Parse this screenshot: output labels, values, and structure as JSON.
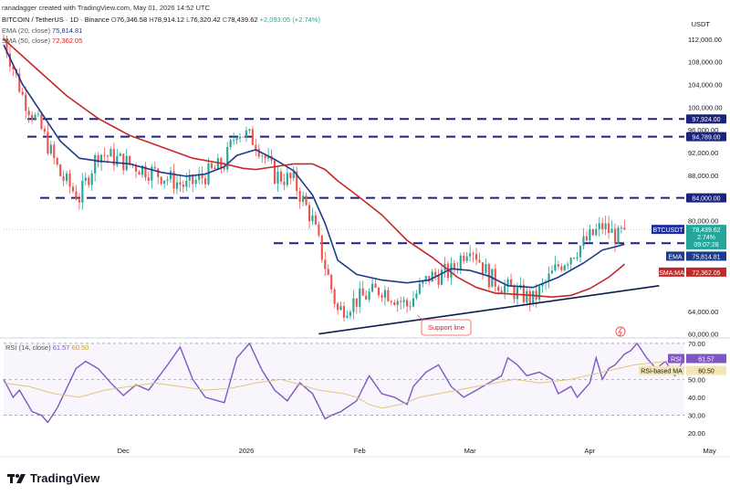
{
  "header": {
    "credit": "ranadagger created with TradingView.com, May 01, 2026 14:52 UTC",
    "symbol": "BITCOIN / TetherUS · 1D · Binance",
    "open_label": "O",
    "open": "76,346.58",
    "high_label": "H",
    "high": "78,914.12",
    "low_label": "L",
    "low": "76,320.42",
    "close_label": "C",
    "close": "78,439.62",
    "change": "+2,093.05 (+2.74%)",
    "ema_label": "EMA (20, close)",
    "ema_value": "75,814.81",
    "sma_label": "SMA (50, close)",
    "sma_value": "72,362.05",
    "rsi_label": "RSI (14, close)",
    "rsi_value": "61.57",
    "rsi_ma_value": "60.50"
  },
  "currency": "USDT",
  "branding": {
    "name": "TradingView"
  },
  "colors": {
    "up": "#26a69a",
    "down": "#ef5350",
    "ema": "#1e3a8a",
    "sma": "#c62828",
    "rsi": "#7e57c2",
    "rsi_ma": "#e0c67a",
    "level": "#1a237e",
    "current": "#1e2e9e"
  },
  "chart_data": [
    {
      "type": "candlestick",
      "title": "BITCOIN / TetherUS · 1D · Binance",
      "x_tick_labels": [
        "Dec",
        "2026",
        "Feb",
        "Mar",
        "Apr",
        "May"
      ],
      "y_tick_labels": [
        "112,000.00",
        "108,000.00",
        "104,000.00",
        "100,000.00",
        "96,000.00",
        "92,000.00",
        "88,000.00",
        "80,000.00",
        "64,000.00",
        "60,000.00"
      ],
      "ylim": [
        58000,
        116000
      ],
      "path_points": [
        [
          0,
          112000
        ],
        [
          6,
          102000
        ],
        [
          12,
          96000
        ],
        [
          18,
          88000
        ],
        [
          24,
          84000
        ],
        [
          30,
          92000
        ],
        [
          40,
          90000
        ],
        [
          50,
          88000
        ],
        [
          58,
          86000
        ],
        [
          64,
          88000
        ],
        [
          70,
          90000
        ],
        [
          74,
          96000
        ],
        [
          80,
          94000
        ],
        [
          86,
          88000
        ],
        [
          92,
          87000
        ],
        [
          98,
          80000
        ],
        [
          102,
          72000
        ],
        [
          106,
          64000
        ],
        [
          112,
          66000
        ],
        [
          120,
          68000
        ],
        [
          128,
          65000
        ],
        [
          135,
          70000
        ],
        [
          142,
          71000
        ],
        [
          148,
          76000
        ],
        [
          154,
          70000
        ],
        [
          160,
          68000
        ],
        [
          168,
          66000
        ],
        [
          176,
          72000
        ],
        [
          184,
          76000
        ],
        [
          190,
          79000
        ],
        [
          195,
          77000
        ],
        [
          197,
          78439.62
        ]
      ],
      "series": [
        {
          "name": "EMA (20, close)",
          "last": 75814.81,
          "values": [
            111000,
            104000,
            99000,
            94000,
            91000,
            90500,
            90000,
            88500,
            87800,
            88200,
            89500,
            91500,
            92500,
            90800,
            88800,
            84500,
            79500,
            73000,
            70500,
            69500,
            69000,
            69500,
            71500,
            71200,
            70200,
            68500,
            68200,
            70000,
            72500,
            74800,
            75500,
            75814.81
          ],
          "x": [
            0,
            6,
            12,
            18,
            24,
            30,
            40,
            50,
            58,
            64,
            70,
            74,
            80,
            86,
            92,
            98,
            102,
            106,
            112,
            120,
            128,
            135,
            142,
            148,
            154,
            160,
            168,
            176,
            184,
            190,
            195,
            197
          ]
        },
        {
          "name": "SMA (50, close)",
          "last": 72362.05,
          "values": [
            112000,
            107000,
            102000,
            98000,
            95000,
            93000,
            91000,
            90000,
            89200,
            89000,
            89500,
            90000,
            90000,
            89000,
            87000,
            84500,
            81000,
            76500,
            73500,
            70000,
            68200,
            67200,
            67000,
            66800,
            66500,
            66800,
            68000,
            70000,
            71800,
            72362.05
          ],
          "x": [
            0,
            10,
            20,
            30,
            40,
            50,
            60,
            70,
            76,
            80,
            86,
            92,
            98,
            102,
            106,
            112,
            120,
            128,
            136,
            144,
            150,
            156,
            162,
            168,
            174,
            180,
            186,
            192,
            196,
            197
          ]
        }
      ],
      "levels": [
        {
          "label": "97,924.00",
          "value": 97924
        },
        {
          "label": "94,789.00",
          "value": 94789
        },
        {
          "label": "84,000.00",
          "value": 84000
        },
        {
          "label": "76,000.00",
          "value": 76000
        }
      ],
      "current_price": {
        "label": "BTCUSDT",
        "value": "78,439.62",
        "pct": "2.74%",
        "time": "09:07:28"
      },
      "ema_tag": {
        "label": "EMA",
        "value": "75,814.81"
      },
      "sma_tag": {
        "label": "SMA:MA",
        "value": "72,362.05"
      },
      "support_line": {
        "label": "Support line",
        "from": [
          100,
          60000
        ],
        "to": [
          208,
          68500
        ]
      }
    },
    {
      "type": "line",
      "title": "RSI (14, close)",
      "y_tick_labels": [
        "70.00",
        "50.00",
        "40.00",
        "30.00",
        "20.00"
      ],
      "ylim": [
        13,
        72
      ],
      "bands": [
        30,
        70
      ],
      "series": [
        {
          "name": "RSI",
          "last": 61.57,
          "values": [
            50,
            40,
            44,
            32,
            30,
            26,
            34,
            45,
            56,
            60,
            56,
            48,
            41,
            47,
            44,
            58,
            68,
            50,
            40,
            37,
            62,
            70,
            55,
            44,
            38,
            48,
            42,
            35,
            28,
            30,
            32,
            38,
            52,
            42,
            40,
            36,
            46,
            54,
            58,
            46,
            40,
            44,
            48,
            52,
            62,
            58,
            52,
            54,
            50,
            42,
            46,
            40,
            48,
            62,
            50,
            56,
            58,
            64,
            66,
            70,
            62,
            56,
            60,
            52,
            61.57
          ],
          "x": [
            0,
            3,
            5,
            9,
            12,
            14,
            17,
            20,
            23,
            26,
            30,
            34,
            38,
            42,
            46,
            52,
            56,
            60,
            64,
            70,
            74,
            78,
            82,
            86,
            90,
            94,
            98,
            100,
            102,
            104,
            107,
            112,
            116,
            120,
            124,
            128,
            130,
            134,
            138,
            142,
            146,
            150,
            154,
            158,
            160,
            163,
            166,
            170,
            174,
            176,
            180,
            182,
            186,
            188,
            190,
            192,
            194,
            197,
            199,
            201,
            204,
            207,
            210,
            213,
            216
          ]
        },
        {
          "name": "RSI-based MA",
          "last": 60.5,
          "values": [
            48,
            46,
            42,
            40,
            44,
            46,
            48,
            46,
            44,
            45,
            48,
            50,
            46,
            44,
            43,
            42,
            40,
            36,
            34,
            36,
            40,
            42,
            44,
            46,
            48,
            50,
            48,
            50,
            54,
            58,
            60,
            60.5
          ],
          "x": [
            0,
            8,
            16,
            24,
            32,
            40,
            48,
            56,
            64,
            72,
            80,
            88,
            96,
            100,
            104,
            108,
            112,
            116,
            120,
            126,
            132,
            138,
            144,
            150,
            156,
            162,
            170,
            180,
            190,
            200,
            210,
            216
          ]
        }
      ],
      "tags": [
        {
          "label": "RSI",
          "value": "61.57"
        },
        {
          "label": "RSI-based MA",
          "value": "60.50"
        }
      ]
    }
  ]
}
